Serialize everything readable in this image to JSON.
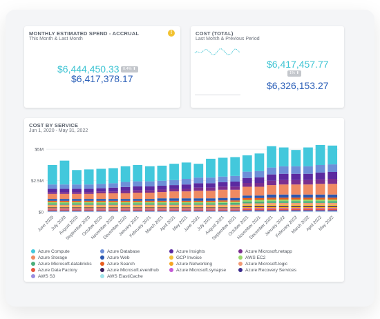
{
  "spend": {
    "title": "MONTHLY ESTIMATED SPEND - ACCRUAL",
    "subtitle": "This Month & Last Month",
    "this_month": "$6,444,450.33",
    "last_month": "$6,417,378.17",
    "change_badge": "0.4% ⬆",
    "info_icon": "!"
  },
  "total": {
    "title": "COST (TOTAL)",
    "subtitle": "Last Month & Previous Period",
    "last_month": "$6,417,457.77",
    "previous_period": "$6,326,153.27",
    "change_badge": "1% ⬆"
  },
  "service": {
    "title": "COST BY SERVICE",
    "subtitle": "Jun 1, 2020 - May 31, 2022"
  },
  "colors": {
    "Azure Compute": "#43c8dc",
    "Azure Storage": "#ef8a62",
    "Azure Microsoft.databricks": "#4caf7a",
    "Azure Data Factory": "#e8553e",
    "AWS S3": "#9a8ee0",
    "Azure Database": "#6d8fd8",
    "Azure Web": "#2b57b0",
    "Azure Search": "#e85d1f",
    "Azure Microsoft.eventhub": "#3a1f5c",
    "AWS ElastiCache": "#9fe3ea",
    "Azure Insights": "#5b2aa0",
    "GCP Invoice": "#f3c23a",
    "Azure Networking": "#f6a623",
    "Azure Microsoft.synapse": "#c45ad6",
    "Azure Microsoft.netapp": "#7b2f8f",
    "AWS EC2": "#9bd86a",
    "Azure Microsoft.logic": "#f29a75",
    "Azure Recovery Services": "#3b2a8c"
  },
  "chart_data": {
    "type": "bar",
    "title": "COST BY SERVICE",
    "subtitle": "Jun 1, 2020 - May 31, 2022",
    "xlabel": "",
    "ylabel": "",
    "ylim": [
      0,
      5.5
    ],
    "yticks": [
      "$0",
      "$2.5M",
      "$5M"
    ],
    "ytick_values": [
      0,
      2.5,
      5
    ],
    "grid": true,
    "legend": "bottom",
    "categories": [
      "June 2020",
      "July 2020",
      "August 2020",
      "September 2020",
      "October 2020",
      "November 2020",
      "December 2020",
      "January 2021",
      "February 2021",
      "March 2021",
      "April 2021",
      "May 2021",
      "June 2021",
      "July 2021",
      "August 2021",
      "September 2021",
      "October 2021",
      "November 2021",
      "December 2021",
      "January 2022",
      "February 2022",
      "March 2022",
      "April 2022",
      "May 2022"
    ],
    "series": [
      {
        "name": "Azure Compute",
        "values": [
          1.55,
          1.9,
          1.15,
          1.2,
          1.2,
          1.2,
          1.25,
          1.3,
          1.2,
          1.2,
          1.3,
          1.3,
          1.1,
          1.5,
          1.5,
          1.5,
          1.3,
          1.4,
          1.7,
          1.5,
          1.3,
          1.5,
          1.6,
          1.5
        ]
      },
      {
        "name": "Azure Database",
        "values": [
          0.35,
          0.35,
          0.35,
          0.35,
          0.35,
          0.35,
          0.4,
          0.4,
          0.4,
          0.4,
          0.4,
          0.45,
          0.45,
          0.45,
          0.45,
          0.45,
          0.5,
          0.5,
          0.55,
          0.6,
          0.6,
          0.6,
          0.6,
          0.6
        ]
      },
      {
        "name": "Azure Insights",
        "values": [
          0.25,
          0.25,
          0.25,
          0.25,
          0.25,
          0.3,
          0.3,
          0.3,
          0.3,
          0.3,
          0.3,
          0.35,
          0.35,
          0.35,
          0.35,
          0.4,
          0.4,
          0.45,
          0.5,
          0.5,
          0.5,
          0.5,
          0.55,
          0.55
        ]
      },
      {
        "name": "Azure Microsoft.netapp",
        "values": [
          0.15,
          0.15,
          0.15,
          0.15,
          0.15,
          0.15,
          0.2,
          0.2,
          0.2,
          0.2,
          0.2,
          0.2,
          0.25,
          0.25,
          0.25,
          0.25,
          0.3,
          0.3,
          0.35,
          0.35,
          0.35,
          0.35,
          0.35,
          0.4
        ]
      },
      {
        "name": "Azure Storage",
        "values": [
          0.4,
          0.4,
          0.4,
          0.4,
          0.45,
          0.45,
          0.45,
          0.5,
          0.5,
          0.5,
          0.55,
          0.55,
          0.6,
          0.6,
          0.65,
          0.65,
          0.7,
          0.7,
          0.75,
          0.8,
          0.8,
          0.8,
          0.85,
          0.85
        ]
      },
      {
        "name": "Azure Web",
        "values": [
          0.15,
          0.15,
          0.15,
          0.15,
          0.15,
          0.15,
          0.15,
          0.15,
          0.15,
          0.2,
          0.2,
          0.2,
          0.2,
          0.2,
          0.2,
          0.2,
          0.2,
          0.2,
          0.25,
          0.25,
          0.25,
          0.25,
          0.25,
          0.25
        ]
      },
      {
        "name": "Azure Search",
        "values": [
          0.1,
          0.1,
          0.1,
          0.1,
          0.1,
          0.1,
          0.1,
          0.1,
          0.1,
          0.1,
          0.1,
          0.1,
          0.1,
          0.1,
          0.1,
          0.1,
          0.15,
          0.15,
          0.15,
          0.15,
          0.15,
          0.15,
          0.15,
          0.15
        ]
      },
      {
        "name": "AWS EC2",
        "values": [
          0.1,
          0.1,
          0.1,
          0.1,
          0.1,
          0.1,
          0.1,
          0.1,
          0.1,
          0.1,
          0.1,
          0.1,
          0.1,
          0.1,
          0.1,
          0.1,
          0.12,
          0.12,
          0.12,
          0.12,
          0.12,
          0.12,
          0.12,
          0.12
        ]
      },
      {
        "name": "Azure Microsoft.databricks",
        "values": [
          0.12,
          0.12,
          0.12,
          0.12,
          0.12,
          0.12,
          0.12,
          0.12,
          0.12,
          0.12,
          0.12,
          0.12,
          0.12,
          0.12,
          0.15,
          0.15,
          0.15,
          0.15,
          0.15,
          0.15,
          0.15,
          0.15,
          0.15,
          0.15
        ]
      },
      {
        "name": "Azure Microsoft.logic",
        "values": [
          0.12,
          0.12,
          0.12,
          0.12,
          0.12,
          0.12,
          0.12,
          0.12,
          0.12,
          0.12,
          0.12,
          0.12,
          0.12,
          0.12,
          0.12,
          0.12,
          0.12,
          0.12,
          0.15,
          0.15,
          0.15,
          0.15,
          0.15,
          0.15
        ]
      },
      {
        "name": "GCP Invoice",
        "values": [
          0.08,
          0.08,
          0.08,
          0.08,
          0.08,
          0.08,
          0.08,
          0.08,
          0.08,
          0.08,
          0.08,
          0.08,
          0.08,
          0.08,
          0.08,
          0.08,
          0.1,
          0.1,
          0.1,
          0.1,
          0.1,
          0.1,
          0.1,
          0.1
        ]
      },
      {
        "name": "Azure Microsoft.eventhub",
        "values": [
          0.06,
          0.06,
          0.06,
          0.06,
          0.06,
          0.06,
          0.06,
          0.06,
          0.06,
          0.06,
          0.06,
          0.06,
          0.06,
          0.06,
          0.06,
          0.06,
          0.08,
          0.08,
          0.08,
          0.08,
          0.08,
          0.08,
          0.08,
          0.08
        ]
      },
      {
        "name": "Azure Networking",
        "values": [
          0.06,
          0.06,
          0.06,
          0.06,
          0.06,
          0.06,
          0.06,
          0.06,
          0.06,
          0.06,
          0.06,
          0.06,
          0.06,
          0.06,
          0.06,
          0.06,
          0.08,
          0.08,
          0.08,
          0.08,
          0.08,
          0.08,
          0.08,
          0.08
        ]
      },
      {
        "name": "Azure Microsoft.synapse",
        "values": [
          0.05,
          0.05,
          0.05,
          0.05,
          0.05,
          0.05,
          0.05,
          0.05,
          0.05,
          0.05,
          0.05,
          0.05,
          0.05,
          0.05,
          0.05,
          0.05,
          0.06,
          0.06,
          0.06,
          0.06,
          0.06,
          0.06,
          0.06,
          0.06
        ]
      },
      {
        "name": "Azure Data Factory",
        "values": [
          0.08,
          0.08,
          0.08,
          0.08,
          0.08,
          0.08,
          0.08,
          0.08,
          0.08,
          0.08,
          0.08,
          0.08,
          0.08,
          0.08,
          0.08,
          0.08,
          0.1,
          0.1,
          0.1,
          0.1,
          0.1,
          0.1,
          0.1,
          0.1
        ]
      },
      {
        "name": "Azure Recovery Services",
        "values": [
          0.05,
          0.05,
          0.05,
          0.05,
          0.05,
          0.05,
          0.05,
          0.05,
          0.05,
          0.05,
          0.05,
          0.05,
          0.05,
          0.05,
          0.05,
          0.05,
          0.06,
          0.06,
          0.06,
          0.06,
          0.06,
          0.06,
          0.06,
          0.06
        ]
      },
      {
        "name": "AWS S3",
        "values": [
          0.04,
          0.04,
          0.04,
          0.04,
          0.04,
          0.04,
          0.04,
          0.04,
          0.04,
          0.04,
          0.04,
          0.04,
          0.04,
          0.04,
          0.04,
          0.04,
          0.05,
          0.05,
          0.05,
          0.05,
          0.05,
          0.05,
          0.05,
          0.05
        ]
      },
      {
        "name": "AWS ElastiCache",
        "values": [
          0.03,
          0.03,
          0.03,
          0.03,
          0.03,
          0.03,
          0.03,
          0.03,
          0.03,
          0.03,
          0.03,
          0.03,
          0.03,
          0.03,
          0.03,
          0.03,
          0.04,
          0.04,
          0.04,
          0.04,
          0.04,
          0.04,
          0.04,
          0.04
        ]
      }
    ]
  },
  "legend_order": [
    "Azure Compute",
    "Azure Storage",
    "Azure Microsoft.databricks",
    "Azure Data Factory",
    "AWS S3",
    "Azure Database",
    "Azure Web",
    "Azure Search",
    "Azure Microsoft.eventhub",
    "AWS ElastiCache",
    "Azure Insights",
    "GCP Invoice",
    "Azure Networking",
    "Azure Microsoft.synapse",
    "Azure Microsoft.netapp",
    "AWS EC2",
    "Azure Microsoft.logic",
    "Azure Recovery Services"
  ]
}
